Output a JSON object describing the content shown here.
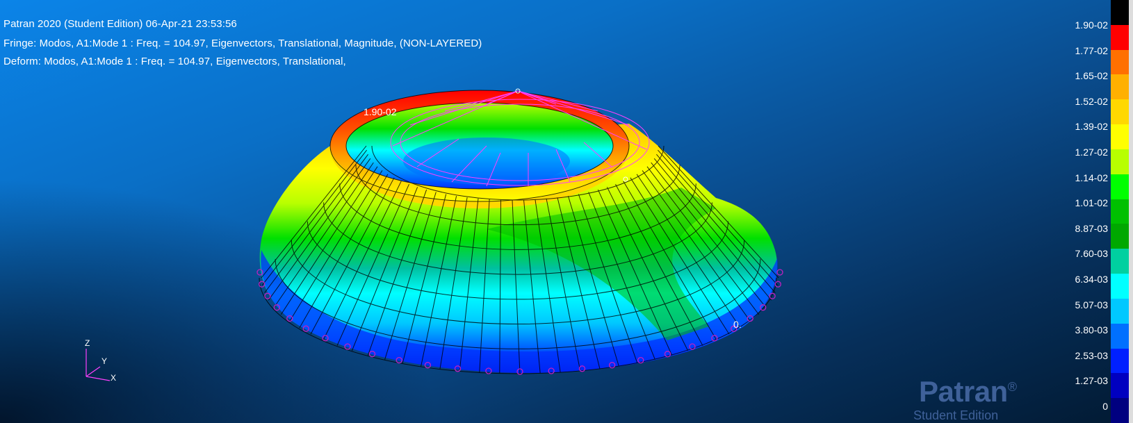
{
  "header": {
    "title": "Patran 2020  (Student Edition) 06-Apr-21 23:53:56",
    "fringe": "Fringe: Modos, A1:Mode 1 : Freq. = 104.97, Eigenvectors, Translational, Magnitude, (NON-LAYERED)",
    "deform": "Deform: Modos, A1:Mode 1 : Freq. = 104.97, Eigenvectors, Translational,"
  },
  "model": {
    "max_marker": "1.90-02",
    "min_marker": "0."
  },
  "legend": {
    "labels": [
      "1.90-02",
      "1.77-02",
      "1.65-02",
      "1.52-02",
      "1.39-02",
      "1.27-02",
      "1.14-02",
      "1.01-02",
      "8.87-03",
      "7.60-03",
      "6.34-03",
      "5.07-03",
      "3.80-03",
      "2.53-03",
      "1.27-03",
      "0"
    ],
    "colors": [
      "#000000",
      "#ff0000",
      "#ff7000",
      "#ffb000",
      "#ffd800",
      "#ffff00",
      "#b8ff00",
      "#00ff00",
      "#00c000",
      "#00a800",
      "#00d0a0",
      "#00ffff",
      "#00c8ff",
      "#0070ff",
      "#0020ff",
      "#0000c0",
      "#000080"
    ]
  },
  "triad": {
    "z": "Z",
    "y": "Y",
    "x": "X"
  },
  "brand": {
    "name": "Patran",
    "mark": "®",
    "edition": "Student Edition"
  }
}
